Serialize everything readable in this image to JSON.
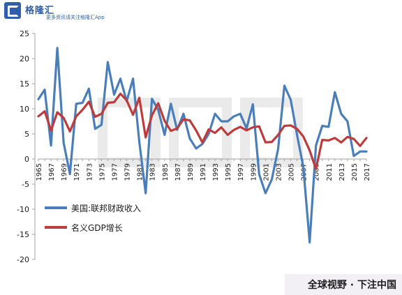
{
  "brand": {
    "name": "格隆汇",
    "tagline": "更多资讯请关注格隆汇App"
  },
  "footer": {
    "text": "全球视野 · 下注中国"
  },
  "colors": {
    "series_blue": "#4a7ebb",
    "series_red": "#be3b3b",
    "axis": "#a0a0a0",
    "brand": "#2f5fa8"
  },
  "chart_data": {
    "type": "line",
    "title": "",
    "xlabel": "",
    "ylabel": "",
    "ylim": [
      -20,
      25
    ],
    "yticks": [
      -20,
      -15,
      -10,
      -5,
      0,
      5,
      10,
      15,
      20,
      25
    ],
    "xticks": [
      1965,
      1967,
      1969,
      1971,
      1973,
      1975,
      1977,
      1979,
      1981,
      1983,
      1985,
      1987,
      1989,
      1991,
      1993,
      1995,
      1997,
      1999,
      2001,
      2003,
      2005,
      2007,
      2009,
      2011,
      2013,
      2015,
      2017
    ],
    "grid": false,
    "legend": "lower-left",
    "x": [
      1965,
      1966,
      1967,
      1968,
      1969,
      1970,
      1971,
      1972,
      1973,
      1974,
      1975,
      1976,
      1977,
      1978,
      1979,
      1980,
      1981,
      1982,
      1983,
      1984,
      1985,
      1986,
      1987,
      1988,
      1989,
      1990,
      1991,
      1992,
      1993,
      1994,
      1995,
      1996,
      1997,
      1998,
      1999,
      2000,
      2001,
      2002,
      2003,
      2004,
      2005,
      2006,
      2007,
      2008,
      2009,
      2010,
      2011,
      2012,
      2013,
      2014,
      2015,
      2016,
      2017
    ],
    "series": [
      {
        "name": "美国:联邦财政收入",
        "color": "#4a7ebb",
        "values": [
          11.9,
          13.8,
          2.7,
          22.1,
          3.2,
          -3.0,
          11.0,
          11.2,
          14.0,
          6.0,
          6.8,
          19.3,
          12.8,
          16.0,
          11.5,
          16.0,
          3.4,
          -6.8,
          12.0,
          9.8,
          4.8,
          11.0,
          5.8,
          9.0,
          4.1,
          2.1,
          3.0,
          5.0,
          9.0,
          7.5,
          7.5,
          8.5,
          9.0,
          6.1,
          10.9,
          -3.0,
          -6.8,
          -4.1,
          2.0,
          14.6,
          11.8,
          4.8,
          -1.6,
          -16.6,
          2.7,
          6.6,
          6.4,
          13.3,
          9.0,
          7.5,
          0.6,
          1.5,
          1.5
        ],
        "data_note_hidden": ""
      },
      {
        "name": "名义GDP增长",
        "color": "#be3b3b",
        "values": [
          8.5,
          9.5,
          5.7,
          9.3,
          8.2,
          5.5,
          8.5,
          9.8,
          11.4,
          8.4,
          9.0,
          11.2,
          11.3,
          13.0,
          11.7,
          8.8,
          12.2,
          4.3,
          8.7,
          11.1,
          7.6,
          5.6,
          6.1,
          7.9,
          7.7,
          5.7,
          3.3,
          5.9,
          5.2,
          6.3,
          4.8,
          5.8,
          6.4,
          5.7,
          6.3,
          6.5,
          3.3,
          3.4,
          4.8,
          6.6,
          6.7,
          6.0,
          4.5,
          1.7,
          -2.0,
          3.8,
          3.7,
          4.2,
          3.3,
          4.4,
          4.0,
          2.6,
          4.2
        ]
      }
    ]
  }
}
